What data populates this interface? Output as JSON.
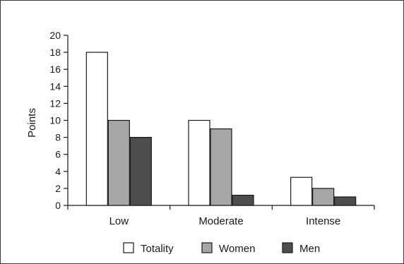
{
  "chart_data": {
    "type": "bar",
    "categories": [
      "Low",
      "Moderate",
      "Intense"
    ],
    "series": [
      {
        "name": "Totality",
        "values": [
          18,
          10,
          3.3
        ],
        "color": "#ffffff"
      },
      {
        "name": "Women",
        "values": [
          10,
          9,
          2
        ],
        "color": "#a6a6a6"
      },
      {
        "name": "Men",
        "values": [
          8,
          1.2,
          1
        ],
        "color": "#4d4d4d"
      }
    ],
    "title": "",
    "xlabel": "",
    "ylabel": "Points",
    "ylim": [
      0,
      20
    ],
    "yticks": [
      0,
      2,
      4,
      6,
      8,
      10,
      12,
      14,
      16,
      18,
      20
    ],
    "grid": false,
    "legend_position": "bottom"
  }
}
